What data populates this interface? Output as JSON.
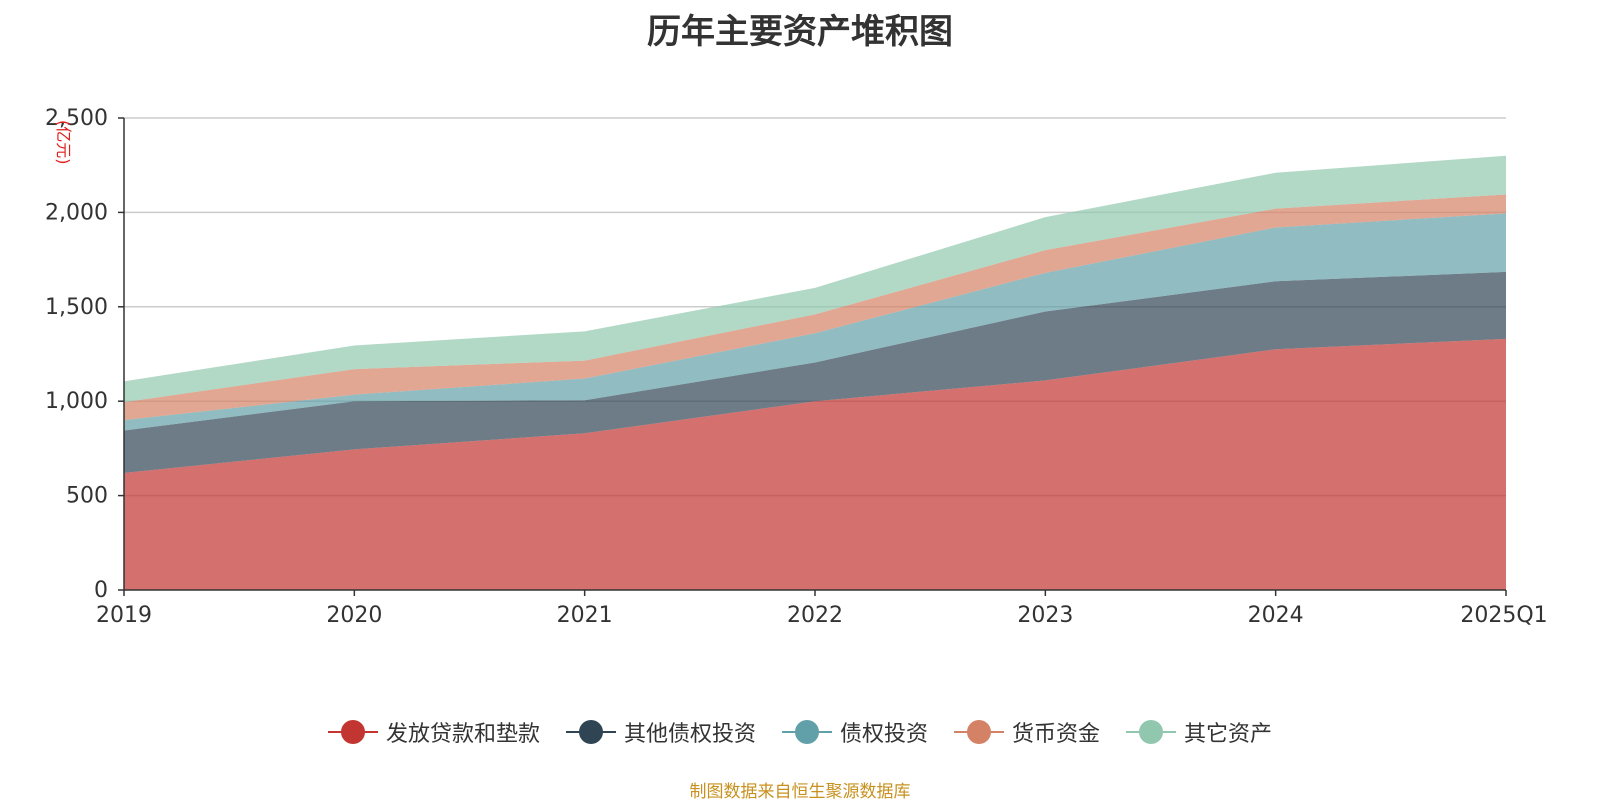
{
  "chart_data": {
    "type": "area",
    "stacked": true,
    "title": "历年主要资产堆积图",
    "unit": "(亿元)",
    "categories": [
      "2019",
      "2020",
      "2021",
      "2022",
      "2023",
      "2024",
      "2025Q1"
    ],
    "ylim": [
      0,
      2500
    ],
    "yticks": [
      "0",
      "500",
      "1,000",
      "1,500",
      "2,000",
      "2,500"
    ],
    "ytick_values": [
      0,
      500,
      1000,
      1500,
      2000,
      2500
    ],
    "grid": true,
    "legend_position": "bottom",
    "series": [
      {
        "name": "发放贷款和垫款",
        "color": "#c23531",
        "values": [
          620,
          745,
          830,
          1000,
          1110,
          1275,
          1330
        ]
      },
      {
        "name": "其他债权投资",
        "color": "#2f4554",
        "values": [
          225,
          255,
          175,
          205,
          365,
          360,
          355
        ]
      },
      {
        "name": "债权投资",
        "color": "#61a0a8",
        "values": [
          55,
          35,
          115,
          155,
          205,
          285,
          310
        ]
      },
      {
        "name": "货币资金",
        "color": "#d48265",
        "values": [
          95,
          135,
          95,
          100,
          120,
          100,
          100
        ]
      },
      {
        "name": "其它资产",
        "color": "#91c7ae",
        "values": [
          110,
          125,
          155,
          140,
          175,
          190,
          205
        ]
      }
    ]
  },
  "footer": "制图数据来自恒生聚源数据库"
}
